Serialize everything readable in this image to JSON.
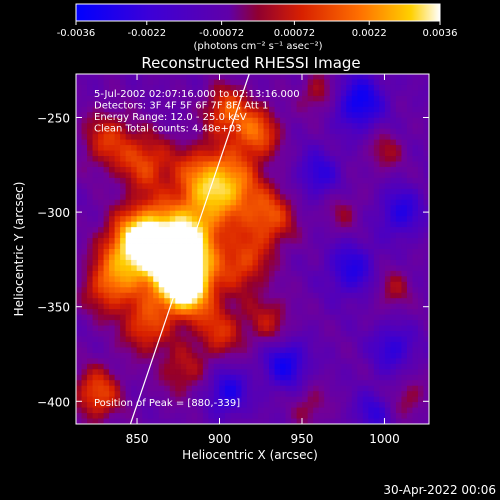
{
  "colorbar": {
    "ticks": [
      "-0.0036",
      "-0.0022",
      "-0.00072",
      "0.00072",
      "0.0022",
      "0.0036"
    ],
    "tick_values": [
      -0.0036,
      -0.0022,
      -0.00072,
      0.00072,
      0.0022,
      0.0036
    ],
    "range": [
      -0.0036,
      0.0036
    ],
    "units": "(photons cm⁻² s⁻¹ asec⁻²)",
    "colors": [
      "#0000ff",
      "#5a00c0",
      "#b00000",
      "#ff4000",
      "#ffc000",
      "#ffffff"
    ]
  },
  "chart_data": {
    "type": "heatmap",
    "title": "Reconstructed RHESSI Image",
    "xlabel": "Heliocentric X (arcsec)",
    "ylabel": "Heliocentric Y (arcsec)",
    "xlim": [
      813,
      1027
    ],
    "ylim": [
      -412,
      -227
    ],
    "xticks": [
      850,
      900,
      950,
      1000
    ],
    "yticks": [
      -400,
      -350,
      -300,
      -250
    ],
    "annotations": [
      "5-Jul-2002 02:07:16.000 to 02:13:16.000",
      "Detectors: 3F 4F 5F 6F 7F 8F, Att 1",
      "Energy Range: 12.0 - 25.0 keV",
      "Clean     Total counts: 4.48e+03"
    ],
    "peak_label": "Position of Peak = [880,-339]",
    "peak": [
      880,
      -339
    ],
    "limb_line": [
      [
        846,
        -412
      ],
      [
        918,
        -227
      ]
    ],
    "footer": "30-Apr-2022 00:06",
    "sources": [
      {
        "x": 880,
        "y": -339,
        "amp": 1.0,
        "s": 11
      },
      {
        "x": 871,
        "y": -327,
        "amp": 0.8,
        "s": 14
      },
      {
        "x": 885,
        "y": -311,
        "amp": 0.6,
        "s": 12
      },
      {
        "x": 858,
        "y": -312,
        "amp": 0.65,
        "s": 12
      },
      {
        "x": 846,
        "y": -319,
        "amp": 0.6,
        "s": 12
      },
      {
        "x": 907,
        "y": -287,
        "amp": 0.6,
        "s": 12
      },
      {
        "x": 889,
        "y": -283,
        "amp": 0.55,
        "s": 13
      },
      {
        "x": 922,
        "y": -258,
        "amp": 0.55,
        "s": 10
      },
      {
        "x": 904,
        "y": -246,
        "amp": 0.5,
        "s": 9
      },
      {
        "x": 930,
        "y": -303,
        "amp": 0.5,
        "s": 11
      },
      {
        "x": 914,
        "y": -327,
        "amp": 0.45,
        "s": 11
      },
      {
        "x": 855,
        "y": -274,
        "amp": 0.45,
        "s": 11
      },
      {
        "x": 832,
        "y": -262,
        "amp": 0.4,
        "s": 11
      },
      {
        "x": 833,
        "y": -339,
        "amp": 0.5,
        "s": 11
      },
      {
        "x": 855,
        "y": -361,
        "amp": 0.45,
        "s": 10
      },
      {
        "x": 826,
        "y": -396,
        "amp": 0.5,
        "s": 10
      },
      {
        "x": 900,
        "y": -363,
        "amp": 0.4,
        "s": 10
      },
      {
        "x": 930,
        "y": -358,
        "amp": 0.3,
        "s": 10
      },
      {
        "x": 877,
        "y": -384,
        "amp": 0.3,
        "s": 10
      },
      {
        "x": 960,
        "y": -237,
        "amp": 0.28,
        "s": 8
      },
      {
        "x": 1000,
        "y": -268,
        "amp": 0.25,
        "s": 8
      },
      {
        "x": 1005,
        "y": -341,
        "amp": 0.25,
        "s": 8
      },
      {
        "x": 955,
        "y": -403,
        "amp": 0.22,
        "s": 8
      },
      {
        "x": 1015,
        "y": -398,
        "amp": 0.22,
        "s": 8
      },
      {
        "x": 975,
        "y": -300,
        "amp": 0.2,
        "s": 8
      }
    ],
    "dips": [
      {
        "x": 985,
        "y": -242,
        "amp": 0.55,
        "s": 10
      },
      {
        "x": 940,
        "y": -380,
        "amp": 0.5,
        "s": 9
      },
      {
        "x": 980,
        "y": -330,
        "amp": 0.4,
        "s": 10
      },
      {
        "x": 1010,
        "y": -300,
        "amp": 0.4,
        "s": 9
      },
      {
        "x": 905,
        "y": -395,
        "amp": 0.45,
        "s": 8
      },
      {
        "x": 960,
        "y": -280,
        "amp": 0.35,
        "s": 9
      },
      {
        "x": 1005,
        "y": -372,
        "amp": 0.35,
        "s": 9
      },
      {
        "x": 993,
        "y": -406,
        "amp": 0.3,
        "s": 8
      }
    ]
  }
}
